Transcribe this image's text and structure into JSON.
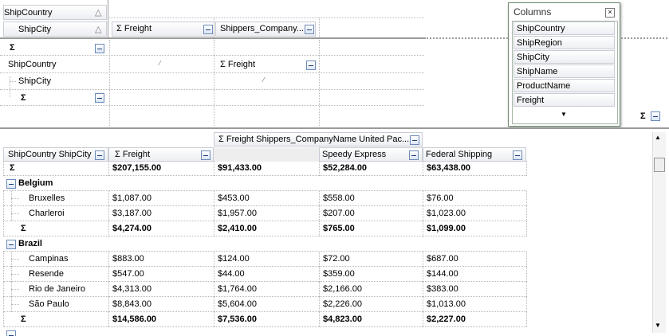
{
  "layout_panel": {
    "sigma": "Σ",
    "header_fields": [
      "ShipCountry",
      "ShipCity"
    ],
    "column_fields": [
      "Σ Freight",
      "Shippers_Company..."
    ],
    "row_fields": [
      "ShipCountry",
      "ShipCity"
    ],
    "value_field": "Σ Freight"
  },
  "columns_panel": {
    "title": "Columns",
    "items": [
      "ShipCountry",
      "ShipRegion",
      "ShipCity",
      "ShipName",
      "ProductName",
      "Freight"
    ]
  },
  "grid": {
    "group_header": "Σ Freight Shippers_CompanyName United Pac...",
    "row_header": "ShipCountry ShipCity",
    "value_header": "Σ Freight",
    "company_headers": [
      "Speedy Express",
      "Federal Shipping"
    ],
    "grand_total": [
      "$207,155.00",
      "$91,433.00",
      "$52,284.00",
      "$63,438.00"
    ],
    "groups": [
      {
        "name": "Belgium",
        "rows": [
          {
            "city": "Bruxelles",
            "cells": [
              "$1,087.00",
              "$453.00",
              "$558.00",
              "$76.00"
            ]
          },
          {
            "city": "Charleroi",
            "cells": [
              "$3,187.00",
              "$1,957.00",
              "$207.00",
              "$1,023.00"
            ]
          }
        ],
        "total": [
          "$4,274.00",
          "$2,410.00",
          "$765.00",
          "$1,099.00"
        ]
      },
      {
        "name": "Brazil",
        "rows": [
          {
            "city": "Campinas",
            "cells": [
              "$883.00",
              "$124.00",
              "$72.00",
              "$687.00"
            ]
          },
          {
            "city": "Resende",
            "cells": [
              "$547.00",
              "$44.00",
              "$359.00",
              "$144.00"
            ]
          },
          {
            "city": "Rio de Janeiro",
            "cells": [
              "$4,313.00",
              "$1,764.00",
              "$2,166.00",
              "$383.00"
            ]
          },
          {
            "city": "São Paulo",
            "cells": [
              "$8,843.00",
              "$5,604.00",
              "$2,226.00",
              "$1,013.00"
            ]
          }
        ],
        "total": [
          "$14,586.00",
          "$7,536.00",
          "$4,823.00",
          "$2,227.00"
        ]
      }
    ]
  }
}
